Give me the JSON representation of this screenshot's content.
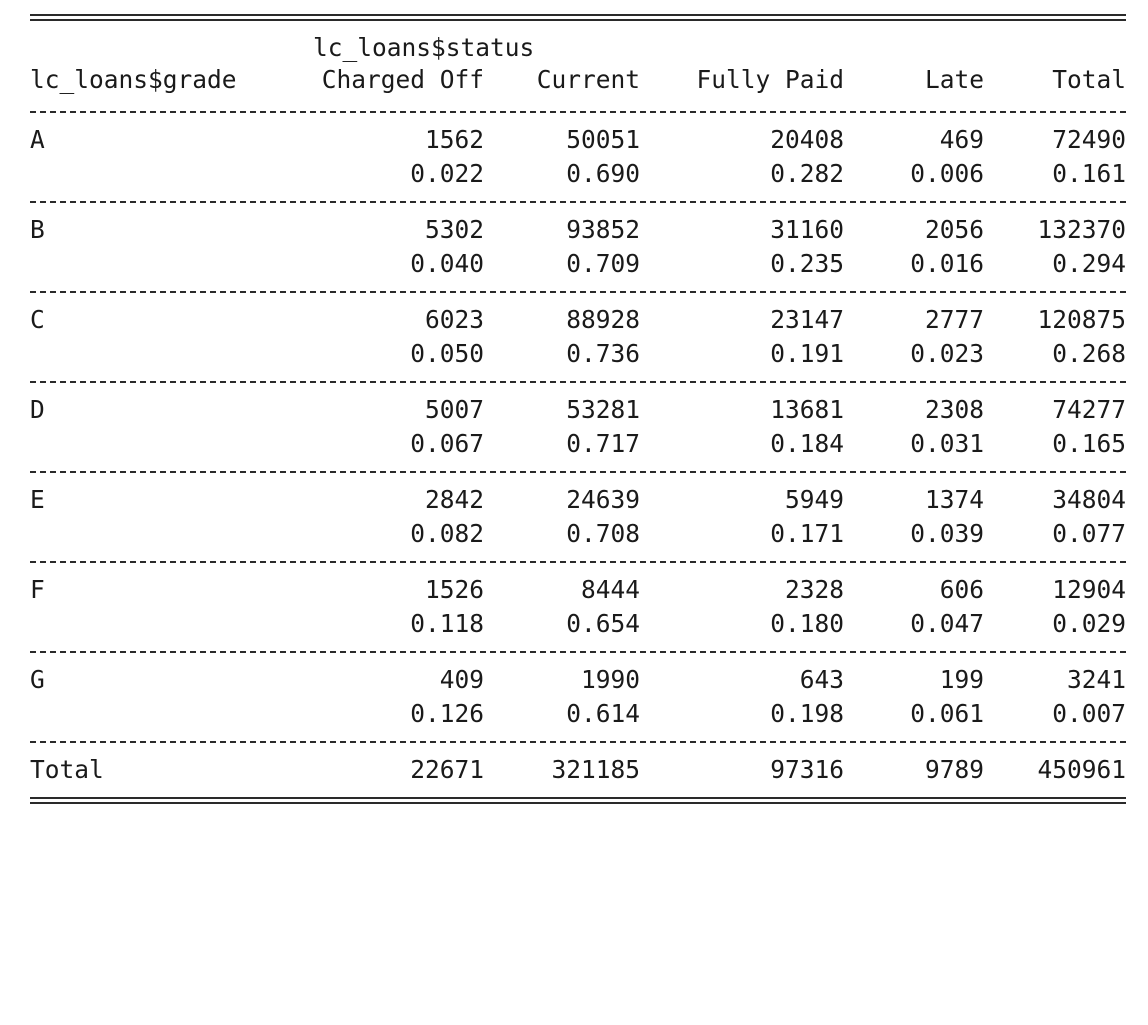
{
  "header": {
    "row_var": "lc_loans$grade",
    "col_var": "lc_loans$status",
    "columns": [
      "Charged Off",
      "Current",
      "Fully Paid",
      "Late",
      "Total"
    ]
  },
  "rows": [
    {
      "label": "A",
      "counts": [
        "1562",
        "50051",
        "20408",
        "469",
        "72490"
      ],
      "props": [
        "0.022",
        "0.690",
        "0.282",
        "0.006",
        "0.161"
      ]
    },
    {
      "label": "B",
      "counts": [
        "5302",
        "93852",
        "31160",
        "2056",
        "132370"
      ],
      "props": [
        "0.040",
        "0.709",
        "0.235",
        "0.016",
        "0.294"
      ]
    },
    {
      "label": "C",
      "counts": [
        "6023",
        "88928",
        "23147",
        "2777",
        "120875"
      ],
      "props": [
        "0.050",
        "0.736",
        "0.191",
        "0.023",
        "0.268"
      ]
    },
    {
      "label": "D",
      "counts": [
        "5007",
        "53281",
        "13681",
        "2308",
        "74277"
      ],
      "props": [
        "0.067",
        "0.717",
        "0.184",
        "0.031",
        "0.165"
      ]
    },
    {
      "label": "E",
      "counts": [
        "2842",
        "24639",
        "5949",
        "1374",
        "34804"
      ],
      "props": [
        "0.082",
        "0.708",
        "0.171",
        "0.039",
        "0.077"
      ]
    },
    {
      "label": "F",
      "counts": [
        "1526",
        "8444",
        "2328",
        "606",
        "12904"
      ],
      "props": [
        "0.118",
        "0.654",
        "0.180",
        "0.047",
        "0.029"
      ]
    },
    {
      "label": "G",
      "counts": [
        "409",
        "1990",
        "643",
        "199",
        "3241"
      ],
      "props": [
        "0.126",
        "0.614",
        "0.198",
        "0.061",
        "0.007"
      ]
    }
  ],
  "total": {
    "label": "Total",
    "counts": [
      "22671",
      "321185",
      "97316",
      "9789",
      "450961"
    ]
  }
}
